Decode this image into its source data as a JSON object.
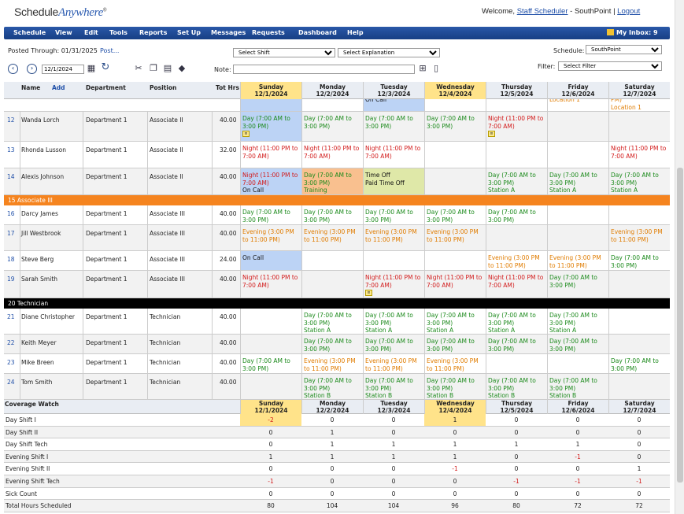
{
  "app": {
    "logo_a": "Schedule",
    "logo_b": "Anywhere",
    "logo_tm": "®"
  },
  "user": {
    "welcome": "Welcome,",
    "name": "Staff Scheduler",
    "site": "- SouthPoint |",
    "logout": "Logout"
  },
  "menu": [
    "Schedule",
    "View",
    "Edit",
    "Tools",
    "Reports",
    "Set Up",
    "Messages",
    "Requests",
    "Dashboard",
    "Help"
  ],
  "inbox": "My Inbox: 9",
  "toolbar": {
    "posted": "Posted Through: 01/31/2025",
    "post_link": "Post...",
    "date": "12/1/2024",
    "shift_select": "Select Shift",
    "expl_select": "Select Explanation",
    "schedule_label": "Schedule:",
    "schedule_value": "SouthPoint",
    "note_label": "Note:",
    "filter_label": "Filter:",
    "filter_value": "Select Filter"
  },
  "grid_header": {
    "name": "Name",
    "add": "Add",
    "dept": "Department",
    "pos": "Position",
    "tot": "Tot Hrs"
  },
  "days": [
    {
      "d": "Sunday",
      "date": "12/1/2024",
      "hl": true
    },
    {
      "d": "Monday",
      "date": "12/2/2024",
      "hl": false
    },
    {
      "d": "Tuesday",
      "date": "12/3/2024",
      "hl": false
    },
    {
      "d": "Wednesday",
      "date": "12/4/2024",
      "hl": true
    },
    {
      "d": "Thursday",
      "date": "12/5/2024",
      "hl": false
    },
    {
      "d": "Friday",
      "date": "12/6/2024",
      "hl": false
    },
    {
      "d": "Saturday",
      "date": "12/7/2024",
      "hl": false
    }
  ],
  "partial_top": {
    "tue": "On Call",
    "fri": "Location 1",
    "sat_a": "PM)",
    "sat_b": "Location 1"
  },
  "rows": [
    {
      "n": "12",
      "name": "Wanda Lorch",
      "dept": "Department 1",
      "pos": "Associate II",
      "hrs": "40.00",
      "cells": [
        {
          "t": "Day (7:00 AM to 3:00 PM)",
          "c": "g",
          "bg": "#bcd3f5",
          "note": true
        },
        {
          "t": "Day (7:00 AM to 3:00 PM)",
          "c": "g"
        },
        {
          "t": "Day (7:00 AM to 3:00 PM)",
          "c": "g"
        },
        {
          "t": "Day (7:00 AM to 3:00 PM)",
          "c": "g"
        },
        {
          "t": "Night (11:00 PM to 7:00 AM)",
          "c": "r",
          "note": true
        },
        {
          "t": ""
        },
        {
          "t": ""
        }
      ]
    },
    {
      "n": "13",
      "name": "Rhonda Lusson",
      "dept": "Department 1",
      "pos": "Associate II",
      "hrs": "32.00",
      "cells": [
        {
          "t": "Night (11:00 PM to 7:00 AM)",
          "c": "r"
        },
        {
          "t": "Night (11:00 PM to 7:00 AM)",
          "c": "r"
        },
        {
          "t": "Night (11:00 PM to 7:00 AM)",
          "c": "r"
        },
        {
          "t": ""
        },
        {
          "t": ""
        },
        {
          "t": ""
        },
        {
          "t": "Night (11:00 PM to 7:00 AM)",
          "c": "r"
        }
      ]
    },
    {
      "n": "14",
      "name": "Alexis Johnson",
      "dept": "Department 1",
      "pos": "Associate II",
      "hrs": "40.00",
      "cells": [
        {
          "t": "Night (11:00 PM to 7:00 AM)",
          "c": "r",
          "bg": "#bcd3f5",
          "sub": "On Call"
        },
        {
          "t": "Day (7:00 AM to 3:00 PM)",
          "c": "g",
          "bg": "#f9c08f",
          "sub": "Training",
          "subc": "g"
        },
        {
          "t": "Time Off",
          "c": "k",
          "bg": "#dfe8a8",
          "sub": "Paid Time Off"
        },
        {
          "t": ""
        },
        {
          "t": "Day (7:00 AM to 3:00 PM)",
          "c": "g",
          "sub": "Station A",
          "subc": "g"
        },
        {
          "t": "Day (7:00 AM to 3:00 PM)",
          "c": "g",
          "sub": "Station A",
          "subc": "g"
        },
        {
          "t": "Day (7:00 AM to 3:00 PM)",
          "c": "g",
          "sub": "Station A",
          "subc": "g"
        }
      ]
    }
  ],
  "section1": {
    "n": "15",
    "label": "Associate III"
  },
  "rows2": [
    {
      "n": "16",
      "name": "Darcy James",
      "dept": "Department 1",
      "pos": "Associate III",
      "hrs": "40.00",
      "cells": [
        {
          "t": "Day (7:00 AM to 3:00 PM)",
          "c": "g"
        },
        {
          "t": "Day (7:00 AM to 3:00 PM)",
          "c": "g"
        },
        {
          "t": "Day (7:00 AM to 3:00 PM)",
          "c": "g"
        },
        {
          "t": "Day (7:00 AM to 3:00 PM)",
          "c": "g"
        },
        {
          "t": "Day (7:00 AM to 3:00 PM)",
          "c": "g"
        },
        {
          "t": ""
        },
        {
          "t": ""
        }
      ]
    },
    {
      "n": "17",
      "name": "Jill Westbrook",
      "dept": "Department 1",
      "pos": "Associate III",
      "hrs": "40.00",
      "cells": [
        {
          "t": "Evening (3:00 PM to 11:00 PM)",
          "c": "o"
        },
        {
          "t": "Evening (3:00 PM to 11:00 PM)",
          "c": "o"
        },
        {
          "t": "Evening (3:00 PM to 11:00 PM)",
          "c": "o"
        },
        {
          "t": "Evening (3:00 PM to 11:00 PM)",
          "c": "o"
        },
        {
          "t": ""
        },
        {
          "t": ""
        },
        {
          "t": "Evening (3:00 PM to 11:00 PM)",
          "c": "o"
        }
      ]
    },
    {
      "n": "18",
      "name": "Steve Berg",
      "dept": "Department 1",
      "pos": "Associate III",
      "hrs": "24.00",
      "cells": [
        {
          "t": "On Call",
          "c": "k",
          "bg": "#bcd3f5"
        },
        {
          "t": ""
        },
        {
          "t": ""
        },
        {
          "t": ""
        },
        {
          "t": "Evening (3:00 PM to 11:00 PM)",
          "c": "o"
        },
        {
          "t": "Evening (3:00 PM to 11:00 PM)",
          "c": "o"
        },
        {
          "t": "Day (7:00 AM to 3:00 PM)",
          "c": "g"
        }
      ]
    },
    {
      "n": "19",
      "name": "Sarah Smith",
      "dept": "Department 1",
      "pos": "Associate III",
      "hrs": "40.00",
      "cells": [
        {
          "t": "Night (11:00 PM to 7:00 AM)",
          "c": "r"
        },
        {
          "t": ""
        },
        {
          "t": "Night (11:00 PM to 7:00 AM)",
          "c": "r",
          "note": true
        },
        {
          "t": "Night (11:00 PM to 7:00 AM)",
          "c": "r"
        },
        {
          "t": "Night (11:00 PM to 7:00 AM)",
          "c": "r"
        },
        {
          "t": "Day (7:00 AM to 3:00 PM)",
          "c": "g"
        },
        {
          "t": ""
        }
      ]
    }
  ],
  "section2": {
    "n": "20",
    "label": "Technician"
  },
  "rows3": [
    {
      "n": "21",
      "name": "Diane Christopher",
      "dept": "Department 1",
      "pos": "Technician",
      "hrs": "40.00",
      "cells": [
        {
          "t": ""
        },
        {
          "t": "Day (7:00 AM to 3:00 PM)",
          "c": "g",
          "sub": "Station A",
          "subc": "g"
        },
        {
          "t": "Day (7:00 AM to 3:00 PM)",
          "c": "g",
          "sub": "Station A",
          "subc": "g"
        },
        {
          "t": "Day (7:00 AM to 3:00 PM)",
          "c": "g",
          "sub": "Station A",
          "subc": "g"
        },
        {
          "t": "Day (7:00 AM to 3:00 PM)",
          "c": "g",
          "sub": "Station A",
          "subc": "g"
        },
        {
          "t": "Day (7:00 AM to 3:00 PM)",
          "c": "g",
          "sub": "Station A",
          "subc": "g"
        },
        {
          "t": ""
        }
      ]
    },
    {
      "n": "22",
      "name": "Keith Meyer",
      "dept": "Department 1",
      "pos": "Technician",
      "hrs": "40.00",
      "cells": [
        {
          "t": ""
        },
        {
          "t": "Day (7:00 AM to 3:00 PM)",
          "c": "g"
        },
        {
          "t": "Day (7:00 AM to 3:00 PM)",
          "c": "g"
        },
        {
          "t": "Day (7:00 AM to 3:00 PM)",
          "c": "g"
        },
        {
          "t": "Day (7:00 AM to 3:00 PM)",
          "c": "g"
        },
        {
          "t": "Day (7:00 AM to 3:00 PM)",
          "c": "g"
        },
        {
          "t": ""
        }
      ]
    },
    {
      "n": "23",
      "name": "Mike Breen",
      "dept": "Department 1",
      "pos": "Technician",
      "hrs": "40.00",
      "cells": [
        {
          "t": "Day (7:00 AM to 3:00 PM)",
          "c": "g"
        },
        {
          "t": "Evening (3:00 PM to 11:00 PM)",
          "c": "o"
        },
        {
          "t": "Evening (3:00 PM to 11:00 PM)",
          "c": "o"
        },
        {
          "t": "Evening (3:00 PM to 11:00 PM)",
          "c": "o"
        },
        {
          "t": ""
        },
        {
          "t": ""
        },
        {
          "t": "Day (7:00 AM to 3:00 PM)",
          "c": "g"
        }
      ]
    },
    {
      "n": "24",
      "name": "Tom Smith",
      "dept": "Department 1",
      "pos": "Technician",
      "hrs": "40.00",
      "cells": [
        {
          "t": ""
        },
        {
          "t": "Day (7:00 AM to 3:00 PM)",
          "c": "g",
          "sub": "Station B",
          "subc": "g"
        },
        {
          "t": "Day (7:00 AM to 3:00 PM)",
          "c": "g",
          "sub": "Station B",
          "subc": "g"
        },
        {
          "t": "Day (7:00 AM to 3:00 PM)",
          "c": "g",
          "sub": "Station B",
          "subc": "g"
        },
        {
          "t": "Day (7:00 AM to 3:00 PM)",
          "c": "g",
          "sub": "Station B",
          "subc": "g"
        },
        {
          "t": "Day (7:00 AM to 3:00 PM)",
          "c": "g",
          "sub": "Station B",
          "subc": "g"
        },
        {
          "t": ""
        }
      ]
    }
  ],
  "coverage": {
    "title": "Coverage Watch",
    "rows": [
      {
        "label": "Day Shift I",
        "v": [
          "-2",
          "0",
          "0",
          "1",
          "0",
          "0",
          "0"
        ]
      },
      {
        "label": "Day Shift II",
        "v": [
          "0",
          "1",
          "0",
          "0",
          "0",
          "0",
          "0"
        ]
      },
      {
        "label": "Day Shift Tech",
        "v": [
          "0",
          "1",
          "1",
          "1",
          "1",
          "1",
          "0"
        ]
      },
      {
        "label": "Evening Shift I",
        "v": [
          "1",
          "1",
          "1",
          "1",
          "0",
          "-1",
          "0"
        ]
      },
      {
        "label": "Evening Shift II",
        "v": [
          "0",
          "0",
          "0",
          "-1",
          "0",
          "0",
          "1"
        ]
      },
      {
        "label": "Evening Shift Tech",
        "v": [
          "-1",
          "0",
          "0",
          "0",
          "-1",
          "-1",
          "-1"
        ]
      },
      {
        "label": "Sick Count",
        "v": [
          "0",
          "0",
          "0",
          "0",
          "0",
          "0",
          "0"
        ]
      },
      {
        "label": "Total Hours Scheduled",
        "v": [
          "80",
          "104",
          "104",
          "96",
          "80",
          "72",
          "72"
        ]
      }
    ]
  },
  "colors": {
    "menu": "#1f4a94",
    "assoc3": "#f5841f",
    "tech": "#000000",
    "highlight": "#ffe38a"
  }
}
